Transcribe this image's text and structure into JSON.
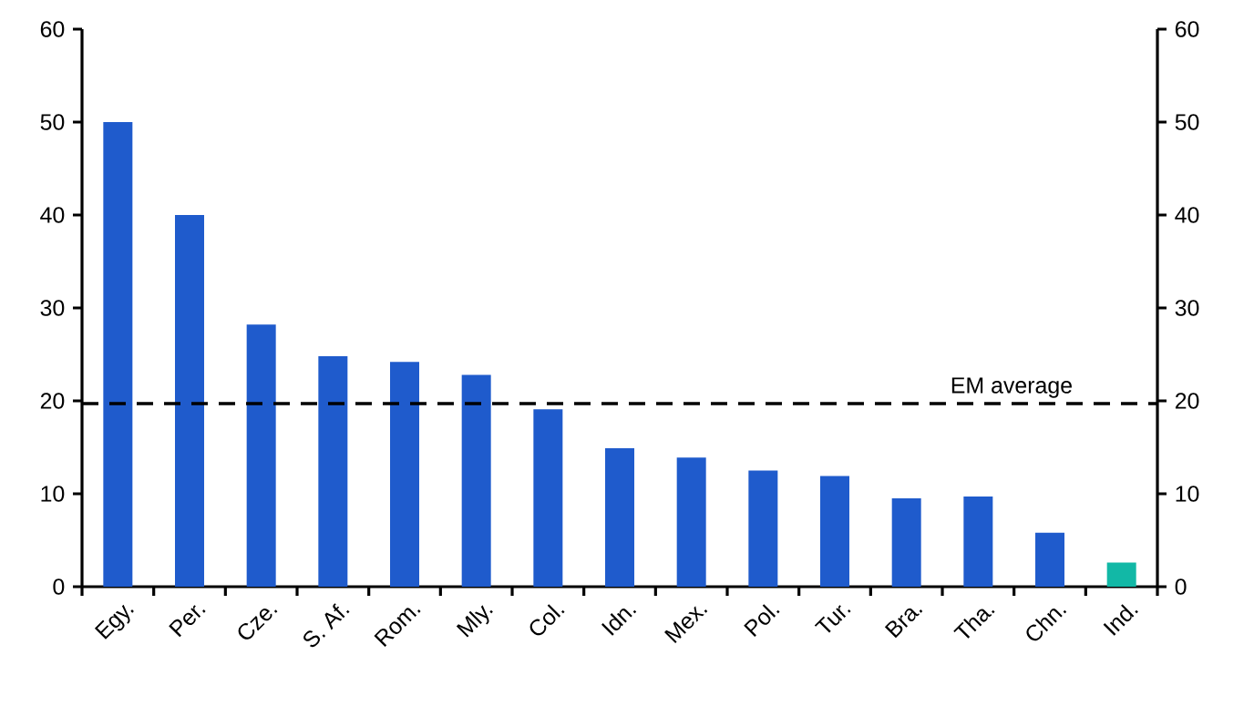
{
  "chart_data": {
    "type": "bar",
    "categories": [
      "Egy.",
      "Per.",
      "Cze.",
      "S. Af.",
      "Rom.",
      "Mly.",
      "Col.",
      "Idn.",
      "Mex.",
      "Pol.",
      "Tur.",
      "Bra.",
      "Tha.",
      "Chn.",
      "Ind."
    ],
    "values": [
      50,
      40,
      28.2,
      24.8,
      24.2,
      22.8,
      19.1,
      14.9,
      13.9,
      12.5,
      11.9,
      9.5,
      9.7,
      5.8,
      2.6
    ],
    "colors": [
      "#1f5bcc",
      "#1f5bcc",
      "#1f5bcc",
      "#1f5bcc",
      "#1f5bcc",
      "#1f5bcc",
      "#1f5bcc",
      "#1f5bcc",
      "#1f5bcc",
      "#1f5bcc",
      "#1f5bcc",
      "#1f5bcc",
      "#1f5bcc",
      "#1f5bcc",
      "#12b8a6"
    ],
    "ylim": [
      0,
      60
    ],
    "yticks": [
      0,
      10,
      20,
      30,
      40,
      50,
      60
    ],
    "y2lim": [
      0,
      60
    ],
    "y2ticks": [
      0,
      10,
      20,
      30,
      40,
      50,
      60
    ],
    "ref_lines": [
      {
        "axis": "y",
        "value": 19.7,
        "label": "EM average",
        "color": "#000000",
        "line_style": "dashed"
      }
    ],
    "grid": false
  }
}
